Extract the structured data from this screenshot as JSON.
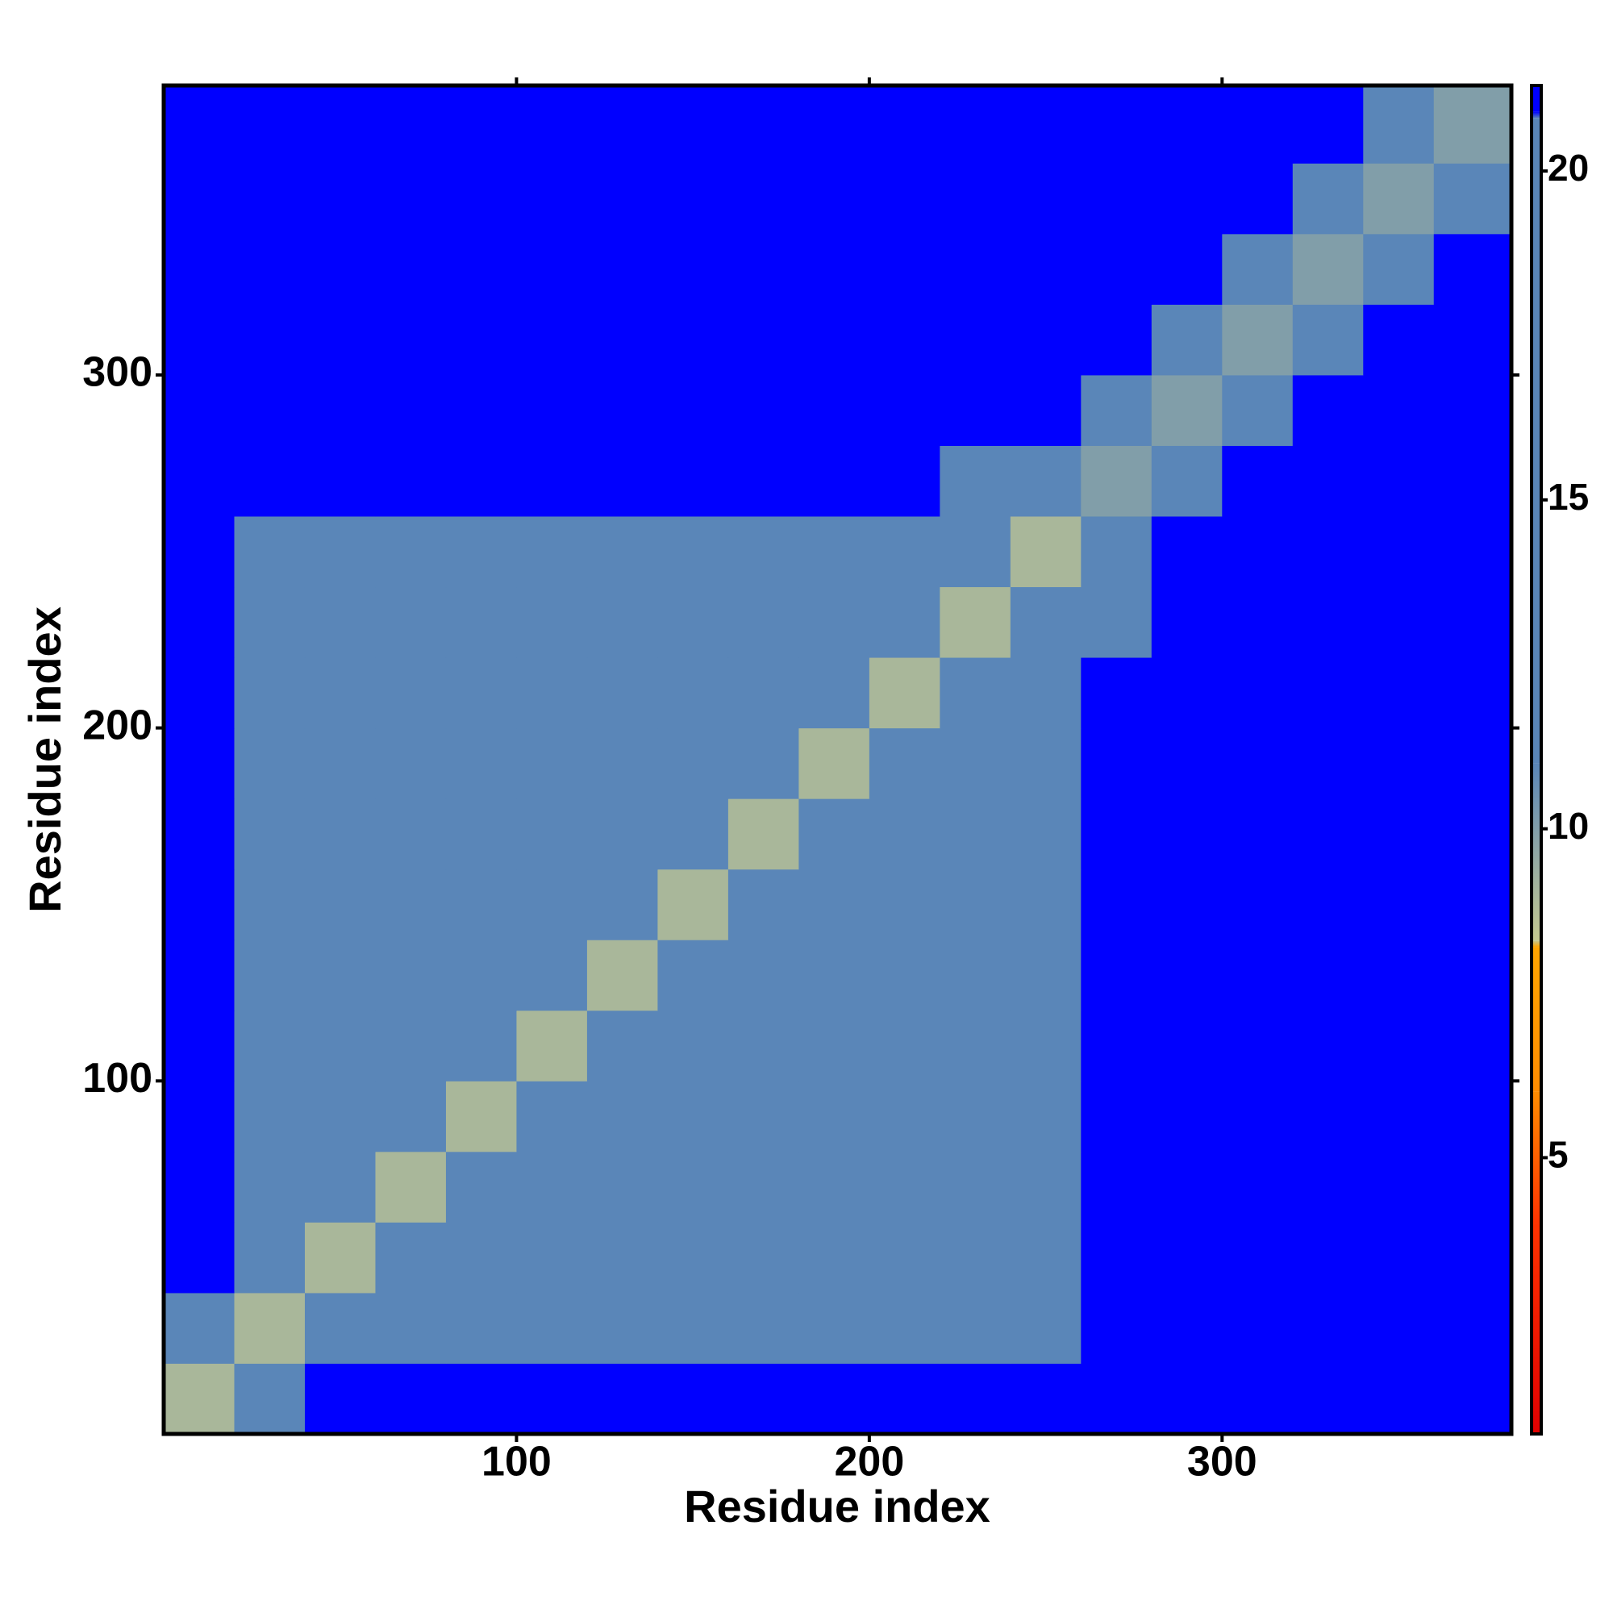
{
  "chart_data": {
    "type": "heatmap",
    "xlabel": "Residue index",
    "ylabel": "Residue index",
    "xbins": [
      0,
      20,
      40,
      60,
      80,
      100,
      120,
      140,
      160,
      180,
      200,
      220,
      240,
      260,
      280,
      300,
      320,
      340,
      360,
      382
    ],
    "ybins": [
      0,
      20,
      40,
      60,
      80,
      100,
      120,
      140,
      160,
      180,
      200,
      220,
      240,
      260,
      280,
      300,
      320,
      340,
      360,
      382
    ],
    "z": [
      [
        9,
        19,
        22,
        22,
        22,
        22,
        22,
        22,
        22,
        22,
        22,
        22,
        22,
        22,
        22,
        22,
        22,
        22,
        22
      ],
      [
        19,
        9,
        14,
        16,
        17,
        18,
        18,
        19,
        18,
        18,
        19,
        19,
        19,
        22,
        22,
        22,
        22,
        22,
        22
      ],
      [
        22,
        14,
        9,
        12,
        15,
        17,
        18,
        18,
        19,
        18,
        18,
        19,
        19,
        22,
        22,
        22,
        22,
        22,
        22
      ],
      [
        22,
        16,
        12,
        9,
        12,
        14,
        16,
        18,
        18,
        18,
        19,
        18,
        19,
        22,
        22,
        22,
        22,
        22,
        22
      ],
      [
        22,
        17,
        15,
        12,
        9,
        12,
        14,
        17,
        18,
        19,
        18,
        18,
        19,
        22,
        22,
        22,
        22,
        22,
        22
      ],
      [
        22,
        18,
        17,
        14,
        12,
        9,
        12,
        16,
        18,
        19,
        19,
        18,
        19,
        22,
        22,
        22,
        22,
        22,
        22
      ],
      [
        22,
        18,
        18,
        16,
        14,
        12,
        9,
        13,
        16,
        18,
        18,
        19,
        18,
        22,
        22,
        22,
        22,
        22,
        22
      ],
      [
        22,
        19,
        18,
        18,
        17,
        16,
        13,
        9,
        13,
        15,
        17,
        18,
        19,
        22,
        22,
        22,
        22,
        22,
        22
      ],
      [
        22,
        18,
        19,
        18,
        18,
        18,
        16,
        13,
        9,
        12,
        14,
        16,
        17,
        22,
        22,
        22,
        22,
        22,
        22
      ],
      [
        22,
        18,
        18,
        18,
        19,
        19,
        18,
        15,
        12,
        9,
        12,
        14,
        16,
        22,
        22,
        22,
        22,
        22,
        22
      ],
      [
        22,
        19,
        18,
        19,
        18,
        19,
        18,
        17,
        14,
        12,
        9,
        12,
        14,
        22,
        22,
        22,
        22,
        22,
        22
      ],
      [
        22,
        19,
        19,
        18,
        18,
        18,
        19,
        18,
        16,
        14,
        12,
        9,
        12,
        19,
        22,
        22,
        22,
        22,
        22
      ],
      [
        22,
        19,
        19,
        19,
        19,
        19,
        18,
        19,
        17,
        16,
        14,
        12,
        9,
        15,
        22,
        22,
        22,
        22,
        22
      ],
      [
        22,
        22,
        22,
        22,
        22,
        22,
        22,
        22,
        22,
        22,
        22,
        19,
        15,
        10,
        19,
        22,
        22,
        22,
        22
      ],
      [
        22,
        22,
        22,
        22,
        22,
        22,
        22,
        22,
        22,
        22,
        22,
        22,
        22,
        19,
        10,
        19,
        22,
        22,
        22
      ],
      [
        22,
        22,
        22,
        22,
        22,
        22,
        22,
        22,
        22,
        22,
        22,
        22,
        22,
        22,
        19,
        10,
        19,
        22,
        22
      ],
      [
        22,
        22,
        22,
        22,
        22,
        22,
        22,
        22,
        22,
        22,
        22,
        22,
        22,
        22,
        22,
        19,
        10,
        19,
        22
      ],
      [
        22,
        22,
        22,
        22,
        22,
        22,
        22,
        22,
        22,
        22,
        22,
        22,
        22,
        22,
        22,
        22,
        19,
        10,
        19
      ],
      [
        22,
        22,
        22,
        22,
        22,
        22,
        22,
        22,
        22,
        22,
        22,
        22,
        22,
        22,
        22,
        22,
        22,
        19,
        10
      ]
    ],
    "xlim": [
      0,
      382
    ],
    "ylim": [
      0,
      382
    ],
    "xticks": [
      100,
      200,
      300
    ],
    "yticks": [
      100,
      200,
      300
    ],
    "clim": [
      0.8,
      21.3
    ],
    "cticks": [
      5,
      10,
      15,
      20
    ],
    "colorscale": [
      [
        0.8,
        "#e00000"
      ],
      [
        4,
        "#ff3300"
      ],
      [
        6,
        "#ff8c00"
      ],
      [
        8.2,
        "#ffa500"
      ],
      [
        8.3,
        "#c4c890"
      ],
      [
        11,
        "#5a86b8"
      ],
      [
        20.8,
        "#5a86b8"
      ],
      [
        20.9,
        "#0000ff"
      ],
      [
        21.3,
        "#0000ff"
      ]
    ]
  }
}
